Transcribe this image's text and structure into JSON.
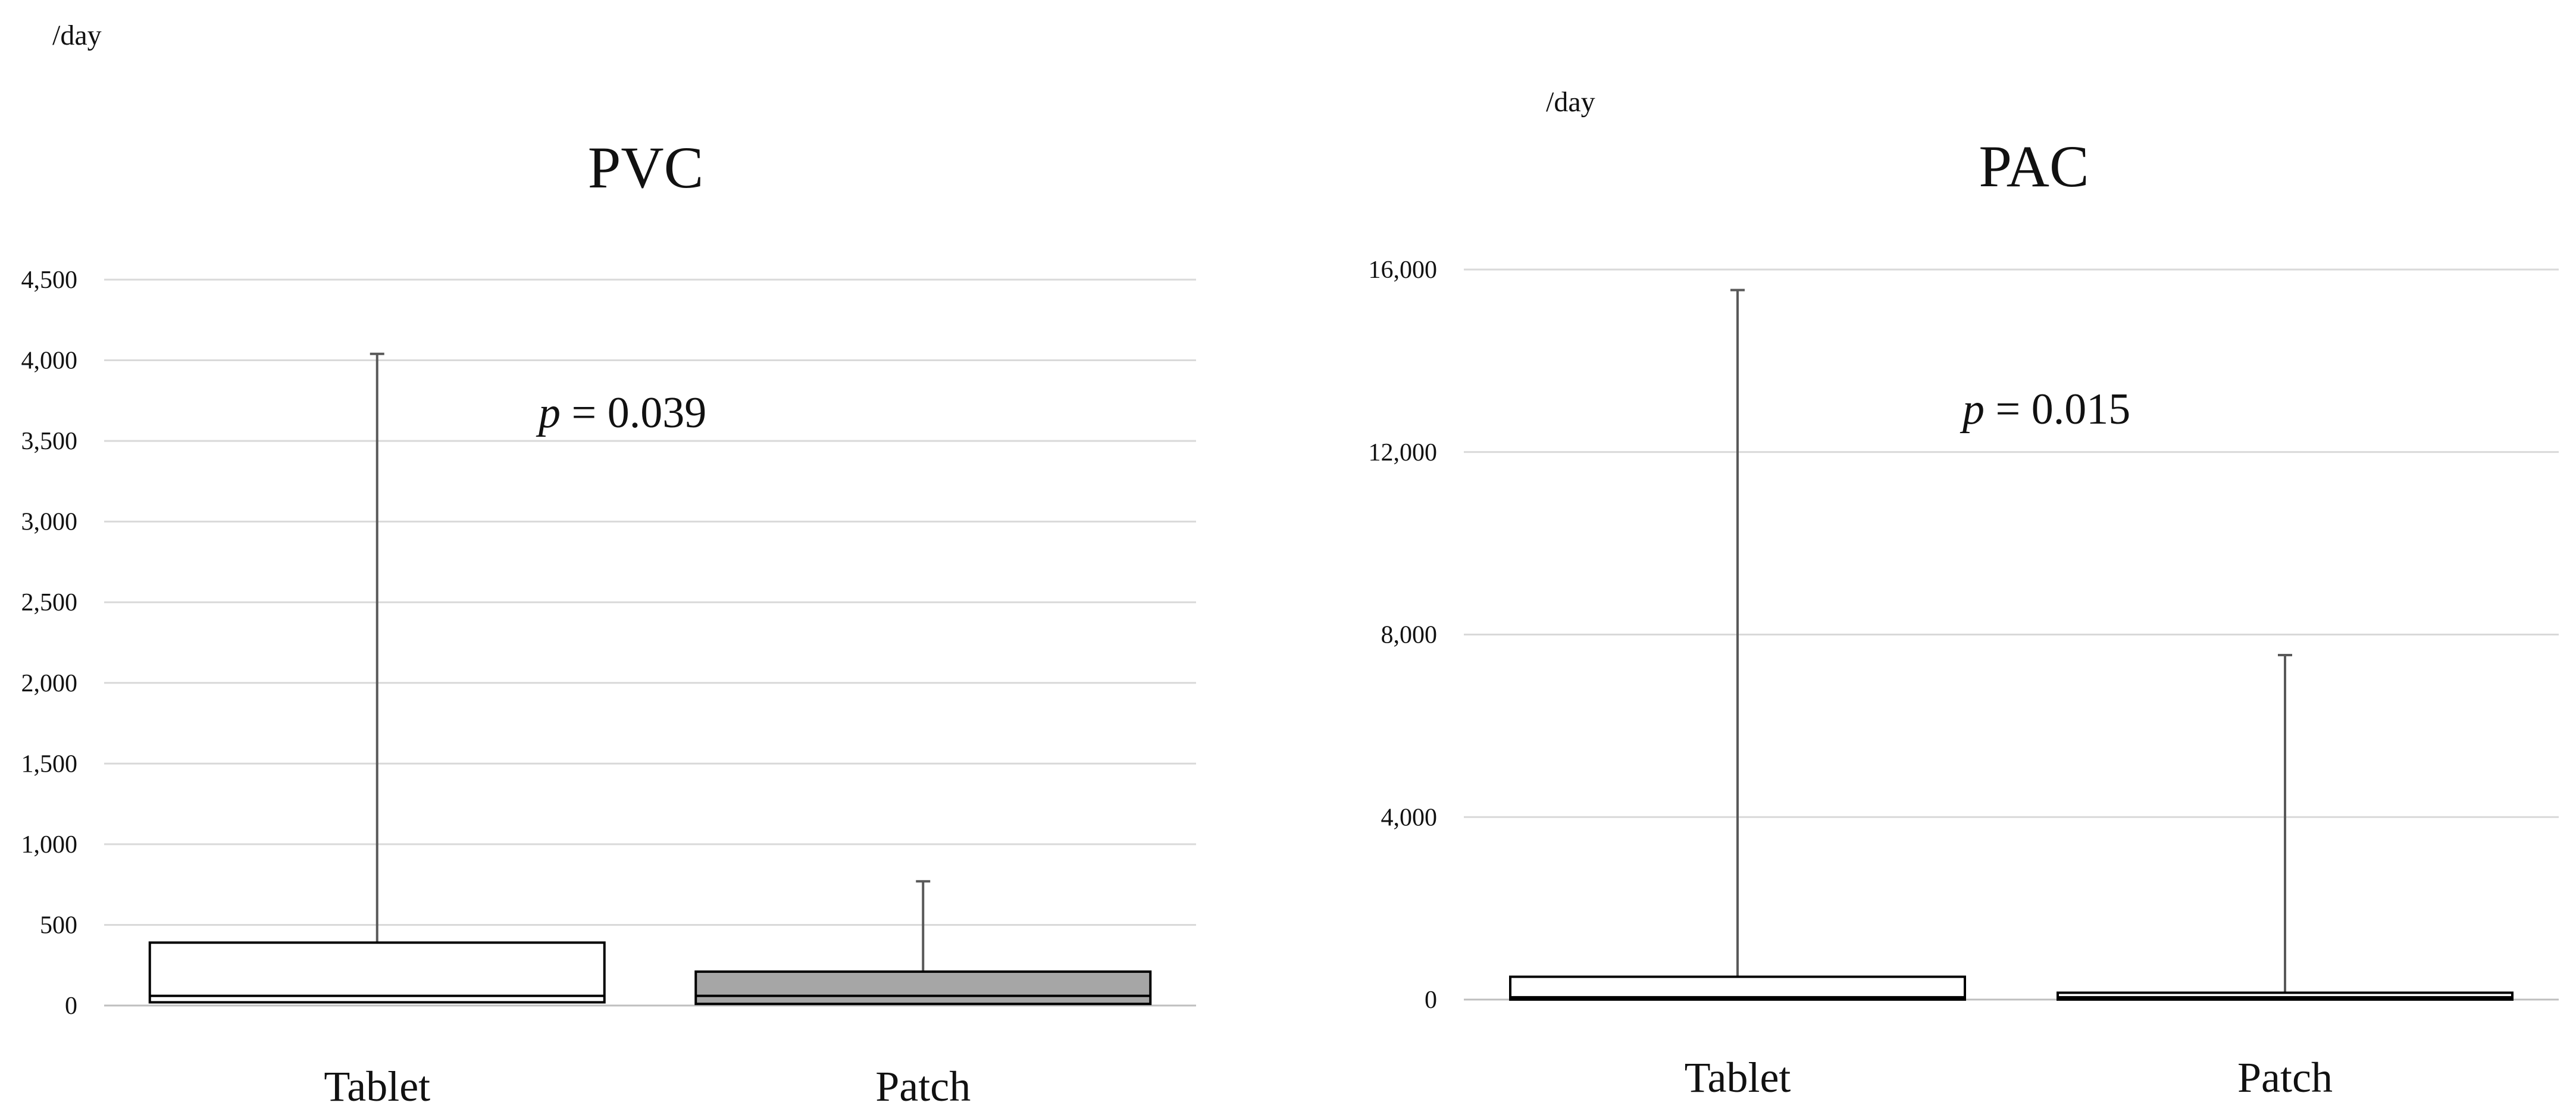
{
  "chart_data": [
    {
      "type": "box",
      "title": "PVC",
      "unit_label": "/day",
      "p_value_label": {
        "symbol": "p",
        "text": "= 0.039"
      },
      "categories": [
        "Tablet",
        "Patch"
      ],
      "ylim": [
        0,
        4500
      ],
      "yticks": [
        0,
        500,
        1000,
        1500,
        2000,
        2500,
        3000,
        3500,
        4000,
        4500
      ],
      "ytick_labels": [
        "0",
        "500",
        "1,000",
        "1,500",
        "2,000",
        "2,500",
        "3,000",
        "3,500",
        "4,000",
        "4,500"
      ],
      "grid": true,
      "boxes": [
        {
          "name": "Tablet",
          "min": 20,
          "q1": 20,
          "median": 60,
          "q3": 390,
          "max": 4040,
          "fill": "#ffffff"
        },
        {
          "name": "Patch",
          "min": 10,
          "q1": 10,
          "median": 60,
          "q3": 210,
          "max": 770,
          "fill": "#a6a6a6"
        }
      ]
    },
    {
      "type": "box",
      "title": "PAC",
      "unit_label": "/day",
      "p_value_label": {
        "symbol": "p",
        "text": "= 0.015"
      },
      "categories": [
        "Tablet",
        "Patch"
      ],
      "ylim": [
        0,
        16000
      ],
      "yticks": [
        0,
        4000,
        8000,
        12000,
        16000
      ],
      "ytick_labels": [
        "0",
        "4,000",
        "8,000",
        "12,000",
        "16,000"
      ],
      "grid": true,
      "boxes": [
        {
          "name": "Tablet",
          "min": 0,
          "q1": 0,
          "median": 50,
          "q3": 500,
          "max": 15550,
          "fill": "#ffffff"
        },
        {
          "name": "Patch",
          "min": 0,
          "q1": 0,
          "median": 50,
          "q3": 150,
          "max": 7550,
          "fill": "#ffffff"
        }
      ]
    }
  ]
}
